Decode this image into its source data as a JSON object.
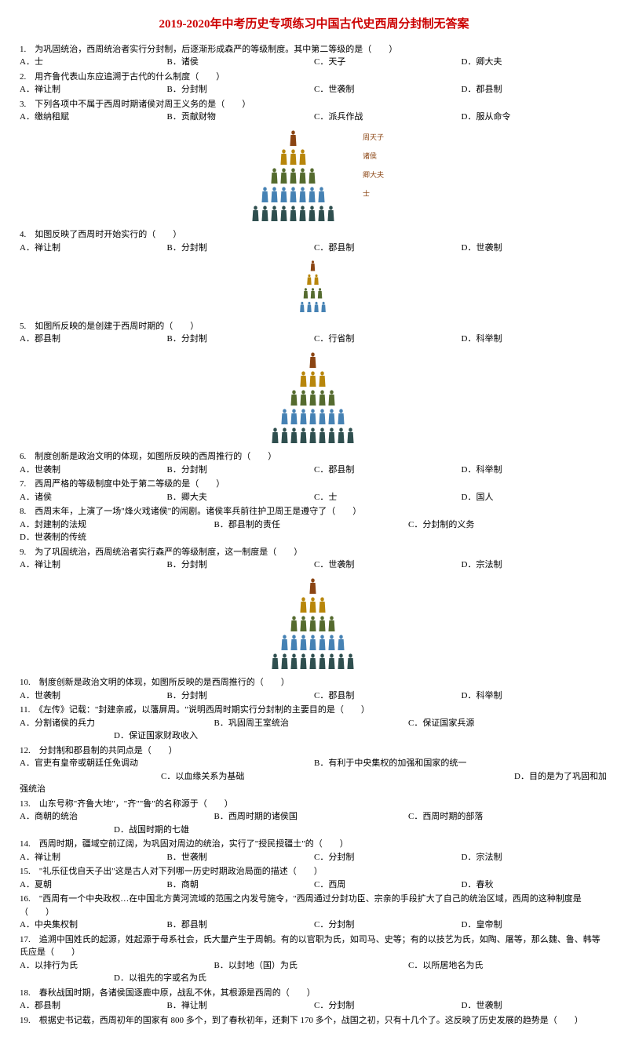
{
  "title": "2019-2020年中考历史专项练习中国古代史西周分封制无答案",
  "title_color": "#cc0000",
  "questions": [
    {
      "n": "1.",
      "t": "为巩固统治，西周统治者实行分封制，后逐渐形成森严的等级制度。其中第二等级的是（　　）",
      "opts": [
        "A．士",
        "B．诸侯",
        "C．天子",
        "D．卿大夫"
      ],
      "layout": "opt4"
    },
    {
      "n": "2.",
      "t": "用齐鲁代表山东应追溯于古代的什么制度（　　）",
      "opts": [
        "A．禅让制",
        "B．分封制",
        "C．世袭制",
        "D．郡县制"
      ],
      "layout": "opt4"
    },
    {
      "n": "3.",
      "t": "下列各项中不属于西周时期诸侯对周王义务的是（　　）",
      "opts": [
        "A．缴纳租赋",
        "B．贡献财物",
        "C．派兵作战",
        "D．服从命令"
      ],
      "layout": "opt4"
    },
    {
      "n": "4.",
      "t": "如图反映了西周时开始实行的（　　）",
      "opts": [
        "A．禅让制",
        "B．分封制",
        "C．郡县制",
        "D．世袭制"
      ],
      "layout": "opt4",
      "img": "p1",
      "img_labels": [
        "周天子",
        "诸侯",
        "卿大夫",
        "士"
      ]
    },
    {
      "n": "5.",
      "t": "如图所反映的是创建于西周时期的（　　）",
      "opts": [
        "A．郡县制",
        "B．分封制",
        "C．行省制",
        "D．科举制"
      ],
      "layout": "opt4",
      "img": "p2"
    },
    {
      "n": "6.",
      "t": "制度创新是政治文明的体现，如图所反映的西周推行的（　　）",
      "opts": [
        "A．世袭制",
        "B．分封制",
        "C．郡县制",
        "D．科举制"
      ],
      "layout": "opt4",
      "img": "p3"
    },
    {
      "n": "7.",
      "t": "西周严格的等级制度中处于第二等级的是（　　）",
      "opts": [
        "A．诸侯",
        "B．卿大夫",
        "C．士",
        "D．国人"
      ],
      "layout": "opt4"
    },
    {
      "n": "8.",
      "t": "西周末年，上演了一场\"烽火戏诸侯\"的闹剧。诸侯率兵前往护卫周王是遵守了（　　）",
      "opts": [
        "A．封建制的法规",
        "B．郡县制的责任",
        "C．分封制的义务",
        "D．世袭制的传统"
      ],
      "layout": "opt-wrap"
    },
    {
      "n": "9.",
      "t": "为了巩固统治，西周统治者实行森严的等级制度，这一制度是（　　）",
      "opts": [
        "A．禅让制",
        "B．分封制",
        "C．世袭制",
        "D．宗法制"
      ],
      "layout": "opt4"
    },
    {
      "n": "10.",
      "t": "制度创新是政治文明的体现，如图所反映的是西周推行的（　　）",
      "opts": [
        "A．世袭制",
        "B．分封制",
        "C．郡县制",
        "D．科举制"
      ],
      "layout": "opt4",
      "img": "p4"
    },
    {
      "n": "11.",
      "t": "《左传》记载：\"封建亲戚，以藩屏周。\"说明西周时期实行分封制的主要目的是（　　）",
      "opts": [
        "A．分割诸侯的兵力",
        "B．巩固周王室统治",
        "C．保证国家兵源",
        "D．保证国家财政收入"
      ],
      "layout": "opt-wrap2"
    },
    {
      "n": "12.",
      "t": "分封制和郡县制的共同点是（　　）",
      "opts": [
        "A．官吏有皇帝或朝廷任免调动",
        "B．有利于中央集权的加强和国家的统一",
        "C．以血缘关系为基础",
        "D．目的是为了巩固和加强统治"
      ],
      "layout": "opt-wrap3"
    },
    {
      "n": "13.",
      "t": "山东号称\"齐鲁大地\"，\"齐\"\"鲁\"的名称源于（　　）",
      "opts": [
        "A．商朝的统治",
        "B．西周时期的诸侯国",
        "C．西周时期的部落",
        "D．战国时期的七雄"
      ],
      "layout": "opt-wrap4"
    },
    {
      "n": "14.",
      "t": "西周时期，疆域空前辽阔，为巩固对周边的统治，实行了\"授民授疆土\"的（　　）",
      "opts": [
        "A．禅让制",
        "B．世袭制",
        "C．分封制",
        "D．宗法制"
      ],
      "layout": "opt4"
    },
    {
      "n": "15.",
      "t": "\"礼乐征伐自天子出\"这是古人对下列哪一历史时期政治局面的描述（　　）",
      "opts": [
        "A．夏朝",
        "B．商朝",
        "C．西周",
        "D．春秋"
      ],
      "layout": "opt4"
    },
    {
      "n": "16.",
      "t": "\"西周有一个中央政权…在中国北方黄河流域的范围之内发号施令，\"西周通过分封功臣、宗亲的手段扩大了自己的统治区域，西周的这种制度是（　　）",
      "opts": [
        "A．中央集权制",
        "B．郡县制",
        "C．分封制",
        "D．皇帝制"
      ],
      "layout": "opt4"
    },
    {
      "n": "17.",
      "t": "追溯中国姓氏的起源，姓起源于母系社会，氏大量产生于周朝。有的以官职为氏，如司马、史等；有的以技艺为氏，如陶、屠等，那么魏、鲁、韩等氏应是（　　）",
      "opts": [
        "A．以排行为氏",
        "B．以封地（国）为氏",
        "C．以所居地名为氏",
        "D．以祖先的字或名为氏"
      ],
      "layout": "opt-wrap5"
    },
    {
      "n": "18.",
      "t": "春秋战国时期，各诸侯国逐鹿中原，战乱不休，其根源是西周的（　　）",
      "opts": [
        "A．郡县制",
        "B．禅让制",
        "C．分封制",
        "D．世袭制"
      ],
      "layout": "opt4"
    },
    {
      "n": "19.",
      "t": "根据史书记载，西周初年的国家有 800 多个，到了春秋初年，还剩下 170 多个，战国之初，只有十几个了。这反映了历史发展的趋势是（　　）",
      "opts": [],
      "layout": "none"
    }
  ],
  "pyramid_colors": {
    "row1": "#8b4513",
    "row2": "#b8860b",
    "row3": "#556b2f",
    "row4": "#4682b4",
    "row5": "#2f4f4f",
    "label": "#8b4513"
  }
}
